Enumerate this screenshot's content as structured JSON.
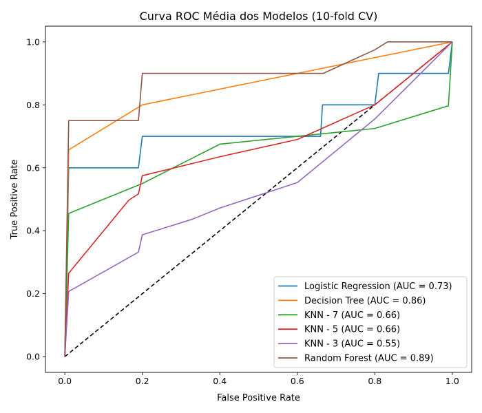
{
  "chart_data": {
    "type": "line",
    "title": "Curva ROC Média dos Modelos (10-fold CV)",
    "xlabel": "False Positive Rate",
    "ylabel": "True Positive Rate",
    "xlim": [
      -0.05,
      1.05
    ],
    "ylim": [
      -0.05,
      1.05
    ],
    "xticks": [
      "0.0",
      "0.2",
      "0.4",
      "0.6",
      "0.8",
      "1.0"
    ],
    "yticks": [
      "0.0",
      "0.2",
      "0.4",
      "0.6",
      "0.8",
      "1.0"
    ],
    "grid": false,
    "legend_position": "bottom-right",
    "series": [
      {
        "name": "Logistic Regression (AUC = 0.73)",
        "color": "#1f77b4",
        "x": [
          0,
          0.01,
          0.19,
          0.2,
          0.66,
          0.665,
          0.8,
          0.81,
          0.99,
          1.0
        ],
        "y": [
          0,
          0.6,
          0.6,
          0.7,
          0.7,
          0.8,
          0.8,
          0.9,
          0.9,
          1.0
        ]
      },
      {
        "name": "Decision Tree (AUC = 0.86)",
        "color": "#ff7f0e",
        "x": [
          0,
          0.01,
          0.2,
          1.0
        ],
        "y": [
          0,
          0.657,
          0.8,
          1.0
        ]
      },
      {
        "name": "KNN - 7 (AUC = 0.66)",
        "color": "#2ca02c",
        "x": [
          0,
          0.01,
          0.2,
          0.4,
          0.6,
          0.8,
          0.99,
          1.0
        ],
        "y": [
          0,
          0.455,
          0.55,
          0.675,
          0.7,
          0.725,
          0.797,
          1.0
        ]
      },
      {
        "name": "KNN - 5 (AUC = 0.66)",
        "color": "#d62728",
        "x": [
          0,
          0.01,
          0.165,
          0.19,
          0.2,
          0.4,
          0.6,
          0.8,
          1.0
        ],
        "y": [
          0,
          0.265,
          0.497,
          0.517,
          0.575,
          0.635,
          0.69,
          0.8,
          1.0
        ]
      },
      {
        "name": "KNN - 3 (AUC = 0.55)",
        "color": "#9467bd",
        "x": [
          0,
          0.01,
          0.19,
          0.2,
          0.33,
          0.4,
          0.6,
          0.8,
          1.0
        ],
        "y": [
          0,
          0.207,
          0.332,
          0.387,
          0.437,
          0.472,
          0.553,
          0.755,
          1.0
        ]
      },
      {
        "name": "Random Forest (AUC = 0.89)",
        "color": "#8c564b",
        "x": [
          0,
          0.01,
          0.19,
          0.2,
          0.667,
          0.8,
          0.833,
          1.0
        ],
        "y": [
          0,
          0.75,
          0.75,
          0.9,
          0.9,
          0.975,
          1.0,
          1.0
        ]
      }
    ],
    "reference_line": {
      "x": [
        0,
        1
      ],
      "y": [
        0,
        1
      ],
      "color": "#000000",
      "style": "dashed"
    }
  }
}
